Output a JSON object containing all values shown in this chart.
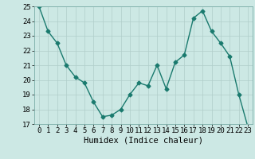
{
  "x": [
    0,
    1,
    2,
    3,
    4,
    5,
    6,
    7,
    8,
    9,
    10,
    11,
    12,
    13,
    14,
    15,
    16,
    17,
    18,
    19,
    20,
    21,
    22,
    23
  ],
  "y": [
    25.0,
    23.3,
    22.5,
    21.0,
    20.2,
    19.8,
    18.5,
    17.5,
    17.6,
    18.0,
    19.0,
    19.8,
    19.6,
    21.0,
    19.4,
    21.2,
    21.7,
    24.2,
    24.7,
    23.3,
    22.5,
    21.6,
    19.0,
    16.8
  ],
  "line_color": "#1a7a6e",
  "marker": "D",
  "marker_size": 2.5,
  "bg_color": "#cce8e4",
  "grid_color": "#b0ceca",
  "xlabel": "Humidex (Indice chaleur)",
  "xlim": [
    -0.5,
    23.5
  ],
  "ylim": [
    17,
    25
  ],
  "yticks": [
    17,
    18,
    19,
    20,
    21,
    22,
    23,
    24,
    25
  ],
  "xticks": [
    0,
    1,
    2,
    3,
    4,
    5,
    6,
    7,
    8,
    9,
    10,
    11,
    12,
    13,
    14,
    15,
    16,
    17,
    18,
    19,
    20,
    21,
    22,
    23
  ],
  "xlabel_fontsize": 7.5,
  "tick_fontsize": 6.5,
  "line_width": 1.0
}
